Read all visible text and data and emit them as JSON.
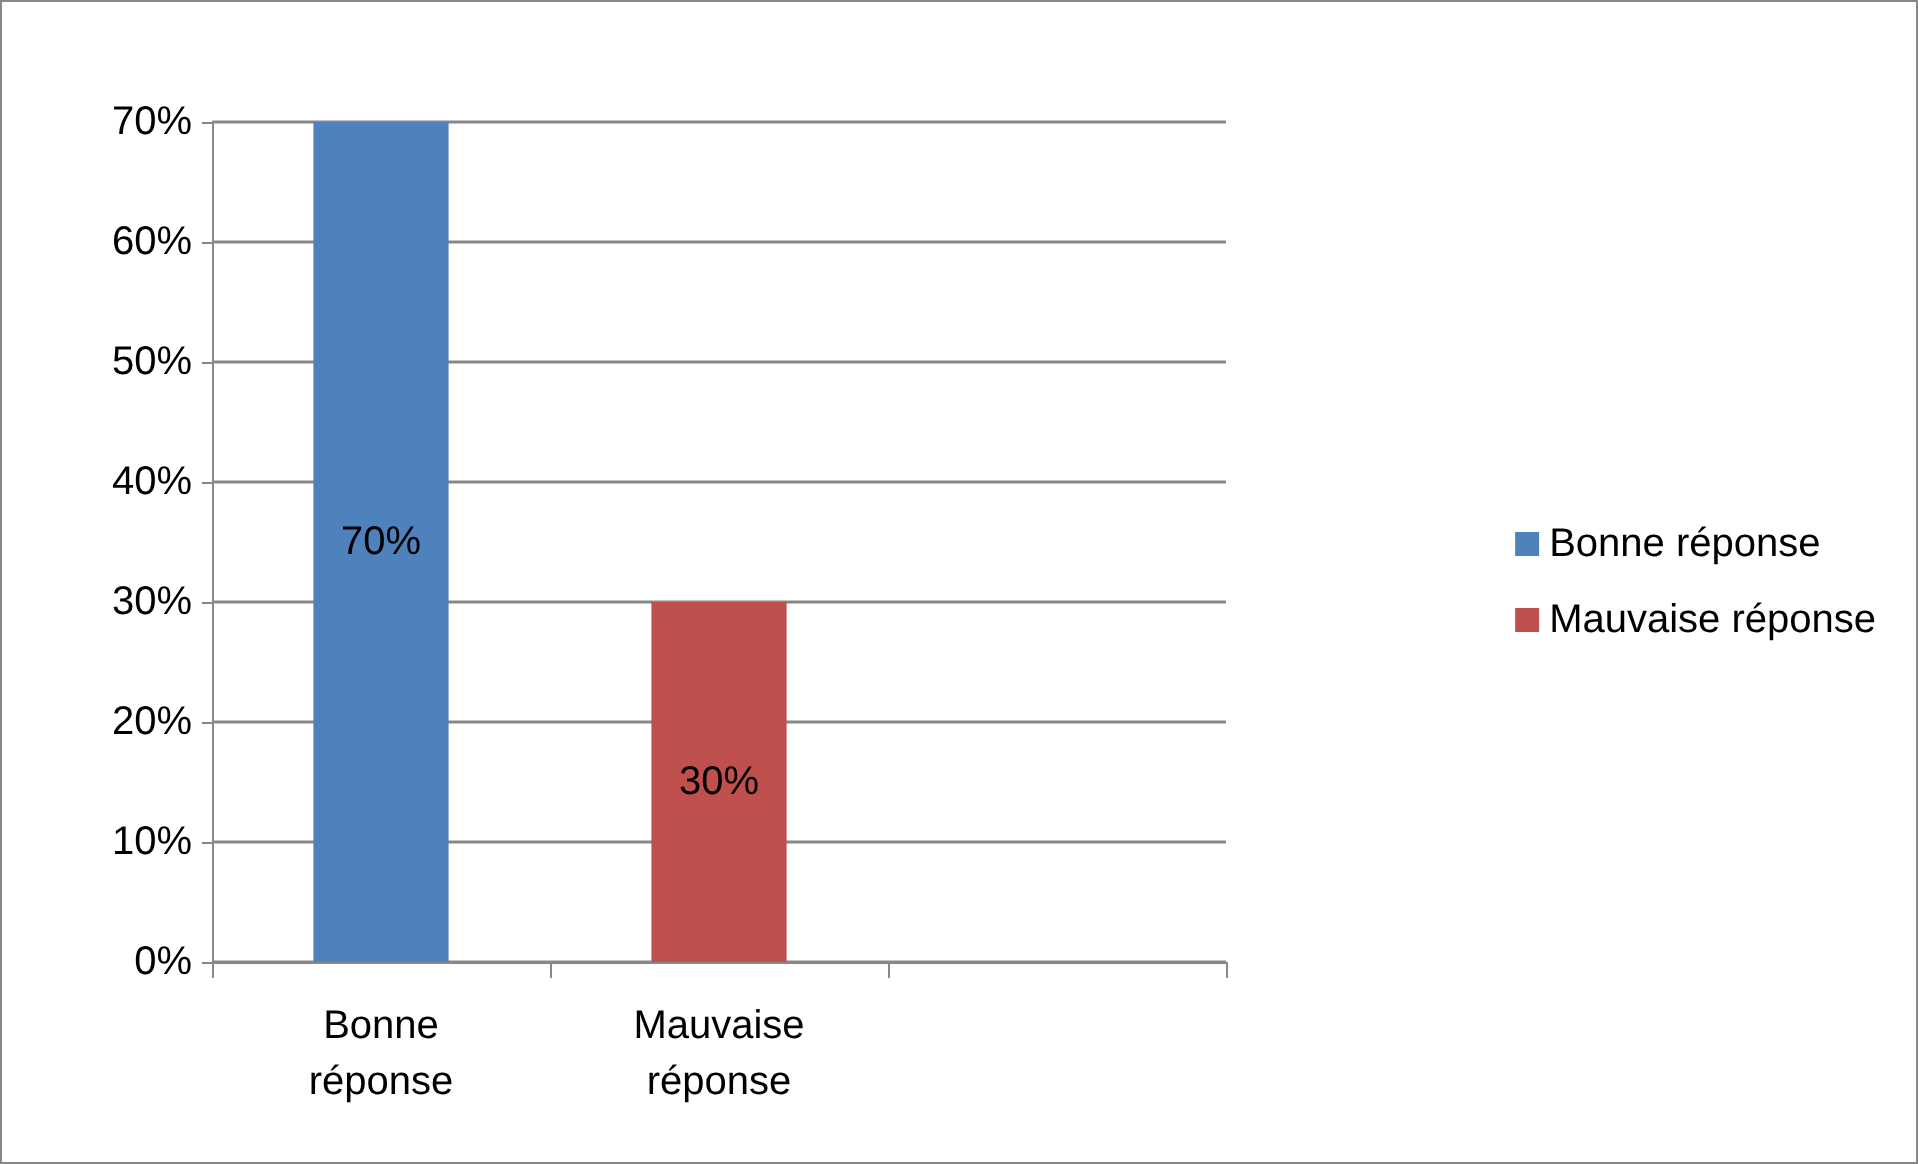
{
  "chart_data": {
    "type": "bar",
    "categories": [
      "Bonne\nréponse",
      "Mauvaise\nréponse",
      null
    ],
    "series": [
      {
        "name": "Bonne réponse",
        "color": "#4f81bd",
        "values": [
          70,
          null,
          null
        ],
        "value_labels": [
          "70%",
          null,
          null
        ]
      },
      {
        "name": "Mauvaise réponse",
        "color": "#c0504d",
        "values": [
          null,
          30,
          null
        ],
        "value_labels": [
          null,
          "30%",
          null
        ]
      }
    ],
    "stacked": true,
    "ylim": [
      0,
      70
    ],
    "yticks": [
      {
        "value": 0,
        "label": "0%"
      },
      {
        "value": 10,
        "label": "10%"
      },
      {
        "value": 20,
        "label": "20%"
      },
      {
        "value": 30,
        "label": "30%"
      },
      {
        "value": 40,
        "label": "40%"
      },
      {
        "value": 50,
        "label": "50%"
      },
      {
        "value": 60,
        "label": "60%"
      },
      {
        "value": 70,
        "label": "70%"
      }
    ],
    "grid": "y",
    "legend": "right"
  }
}
